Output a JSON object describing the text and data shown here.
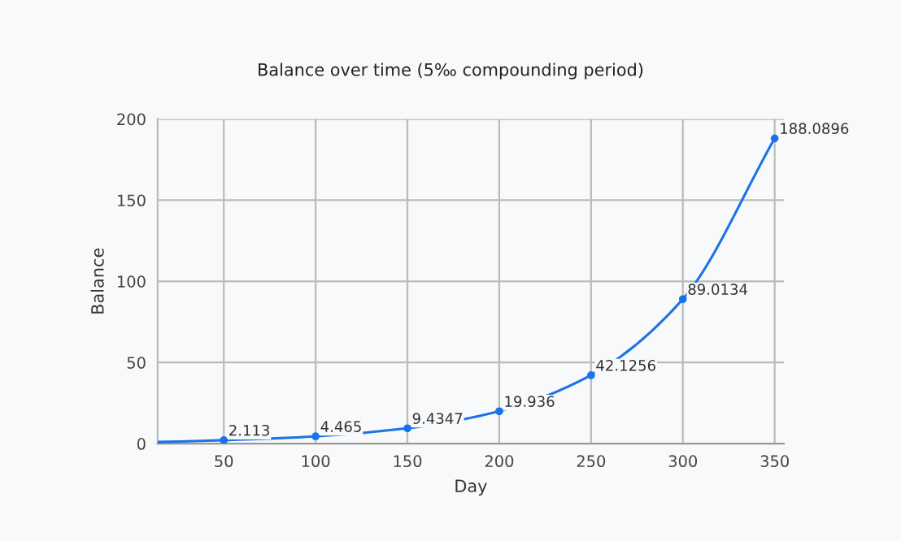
{
  "chart_data": {
    "type": "line",
    "title": "Balance over time (5‰ compounding period)",
    "xlabel": "Day",
    "ylabel": "Balance",
    "x": [
      14,
      50,
      100,
      150,
      200,
      250,
      300,
      350
    ],
    "series": [
      {
        "color": "#1a73e8",
        "values": [
          1,
          2.113,
          4.465,
          9.4347,
          19.936,
          42.1256,
          89.0134,
          188.0896
        ],
        "value_labels": [
          null,
          "2.113",
          "4.465",
          "9.4347",
          "19.936",
          "42.1256",
          "89.0134",
          "188.0896"
        ]
      }
    ],
    "xlim": [
      14,
      355
    ],
    "xticks": [
      50,
      100,
      150,
      200,
      250,
      300,
      350
    ],
    "ylim": [
      0,
      200
    ],
    "yticks": [
      0,
      50,
      100,
      150,
      200
    ],
    "grid": true,
    "marker": "circle",
    "line_style": "solid",
    "legend": false
  }
}
